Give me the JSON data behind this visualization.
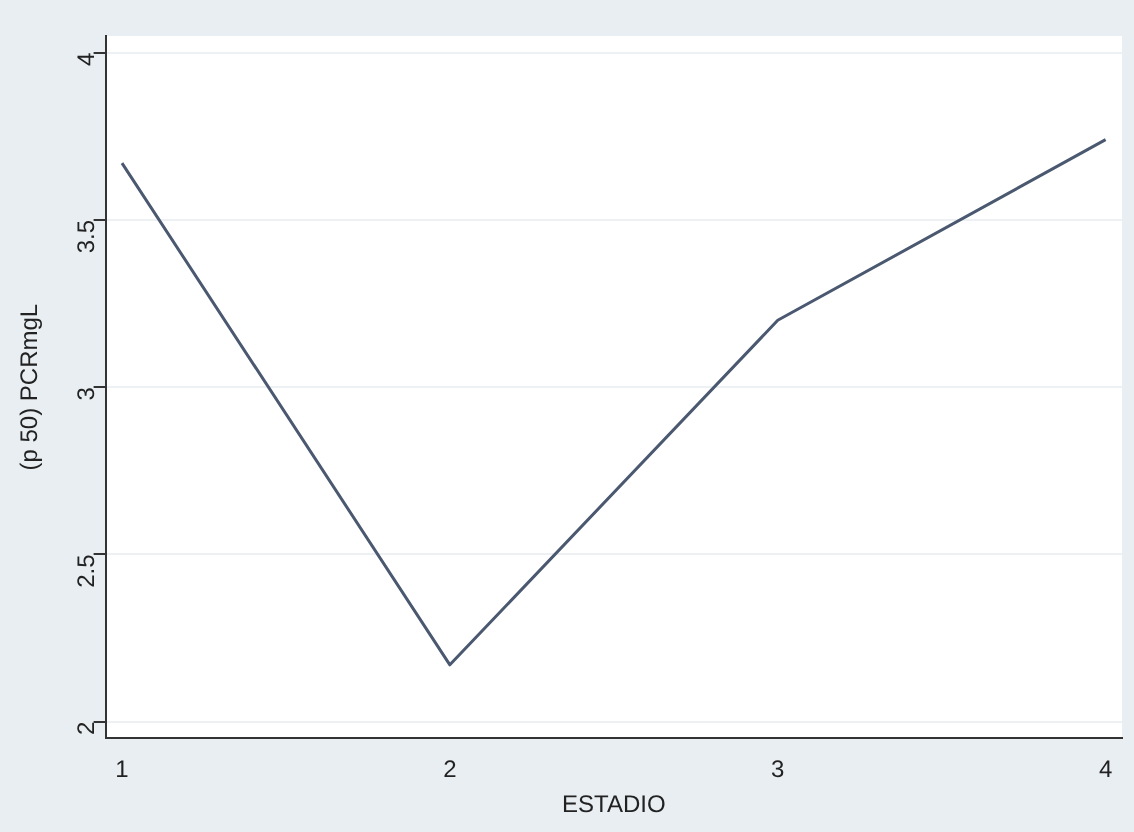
{
  "chart_data": {
    "type": "line",
    "xlabel": "ESTADIO",
    "ylabel": "(p 50) PCRmgL",
    "x": [
      1,
      2,
      3,
      4
    ],
    "series": [
      {
        "color": "#4a5870",
        "values": [
          3.67,
          2.17,
          3.2,
          3.74
        ]
      }
    ],
    "xlim": [
      0.95,
      4.05
    ],
    "xticks": [
      1,
      2,
      3,
      4
    ],
    "ylim": [
      1.95,
      4.05
    ],
    "yticks": [
      2,
      2.5,
      3,
      3.5,
      4
    ],
    "grid": "y",
    "legend": false,
    "marker": "none",
    "line_style": "solid"
  }
}
